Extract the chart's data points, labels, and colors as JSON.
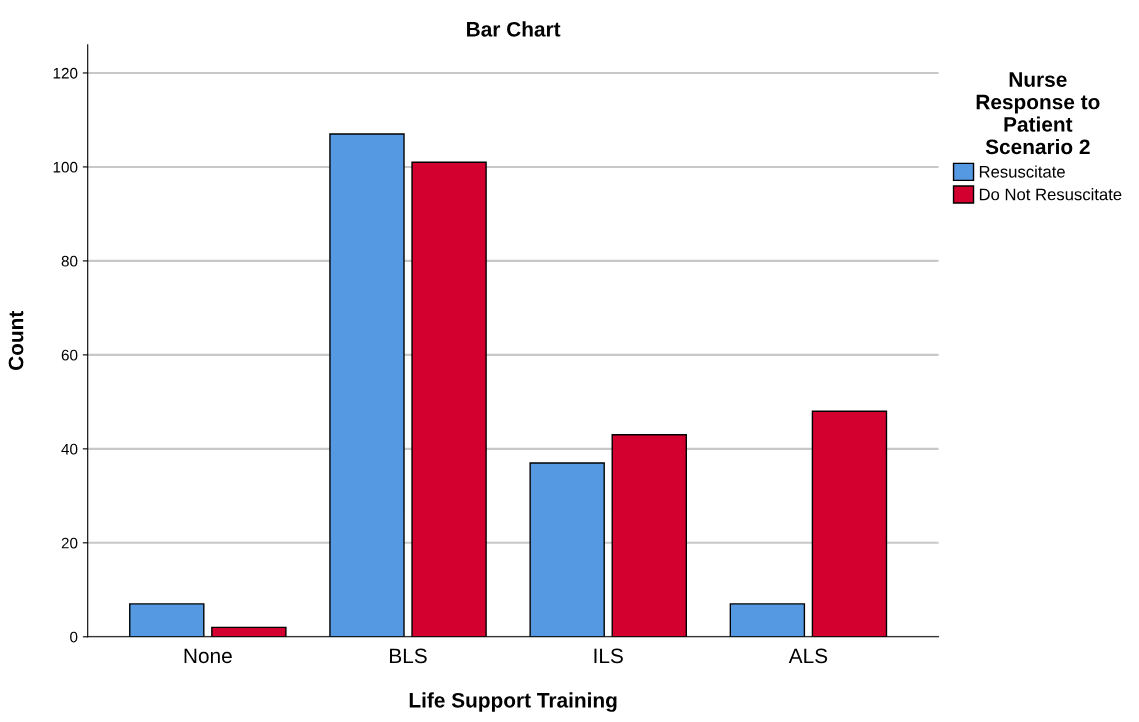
{
  "chart_data": {
    "type": "bar",
    "title": "Bar Chart",
    "xlabel": "Life Support Training",
    "ylabel": "Count",
    "legend_title": "Nurse\nResponse to\nPatient\nScenario 2",
    "categories": [
      "None",
      "BLS",
      "ILS",
      "ALS"
    ],
    "series": [
      {
        "name": "Resuscitate",
        "color": "#5599e3",
        "values": [
          7,
          107,
          37,
          7
        ]
      },
      {
        "name": "Do Not Resuscitate",
        "color": "#d3002f",
        "values": [
          2,
          101,
          43,
          48
        ]
      }
    ],
    "ylim": [
      0,
      126
    ],
    "yticks": [
      0,
      20,
      40,
      60,
      80,
      100,
      120
    ],
    "grid": "y",
    "legend": "top right"
  }
}
